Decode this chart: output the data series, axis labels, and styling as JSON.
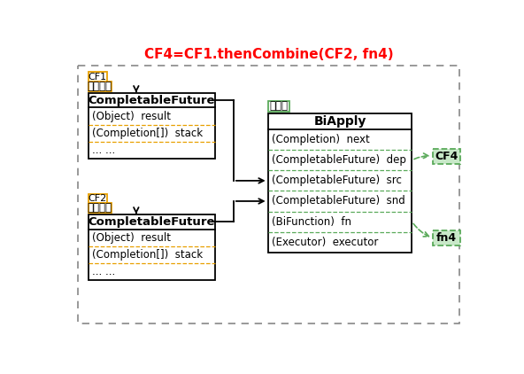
{
  "title": "CF4=CF1.thenCombine(CF2, fn4)",
  "title_color": "#ff0000",
  "title_fontsize": 11,
  "bg_color": "#ffffff",
  "cf1_label": "CF1",
  "cf2_label": "CF2",
  "cf4_label": "CF4",
  "fn4_label": "fn4",
  "observer_label_cn": "被观察者",
  "observer_label_cn2": "观察者",
  "cf1_box_title": "CompletableFuture",
  "cf2_box_title": "CompletableFuture",
  "biapply_title": "BiApply",
  "cf1_fields": [
    "(Object)  result",
    "(Completion[])  stack",
    "... ..."
  ],
  "cf2_fields": [
    "(Object)  result",
    "(Completion[])  stack",
    "... ..."
  ],
  "biapply_fields": [
    "(Completion)  next",
    "(CompletableFuture)  dep",
    "(CompletableFuture)  src",
    "(CompletableFuture)  snd",
    "(BiFunction)  fn",
    "(Executor)  executor"
  ],
  "orange_color": "#e8a000",
  "green_color": "#5aaa5a",
  "green_bg": "#c8e8c8",
  "black": "#000000",
  "gray_border": "#888888"
}
